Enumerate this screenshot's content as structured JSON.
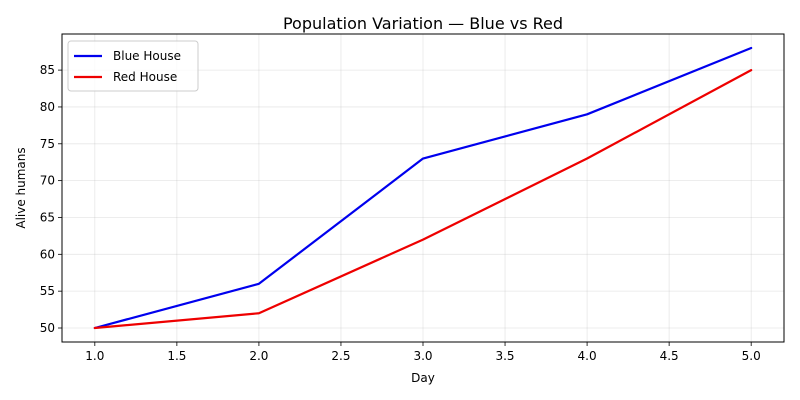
{
  "chart_data": {
    "type": "line",
    "title": "Population Variation — Blue vs Red",
    "xlabel": "Day",
    "ylabel": "Alive humans",
    "x": [
      1,
      2,
      3,
      4,
      5
    ],
    "xlim": [
      0.8,
      5.2
    ],
    "ylim": [
      48.1,
      89.9
    ],
    "xticks": [
      1.0,
      1.5,
      2.0,
      2.5,
      3.0,
      3.5,
      4.0,
      4.5,
      5.0
    ],
    "yticks": [
      50,
      55,
      60,
      65,
      70,
      75,
      80,
      85
    ],
    "grid": true,
    "legend_position": "top-left",
    "series": [
      {
        "name": "Blue House",
        "color": "#0000ee",
        "values": [
          50,
          56,
          73,
          79,
          88
        ]
      },
      {
        "name": "Red House",
        "color": "#ee0000",
        "values": [
          50,
          52,
          62,
          73,
          85
        ]
      }
    ]
  }
}
